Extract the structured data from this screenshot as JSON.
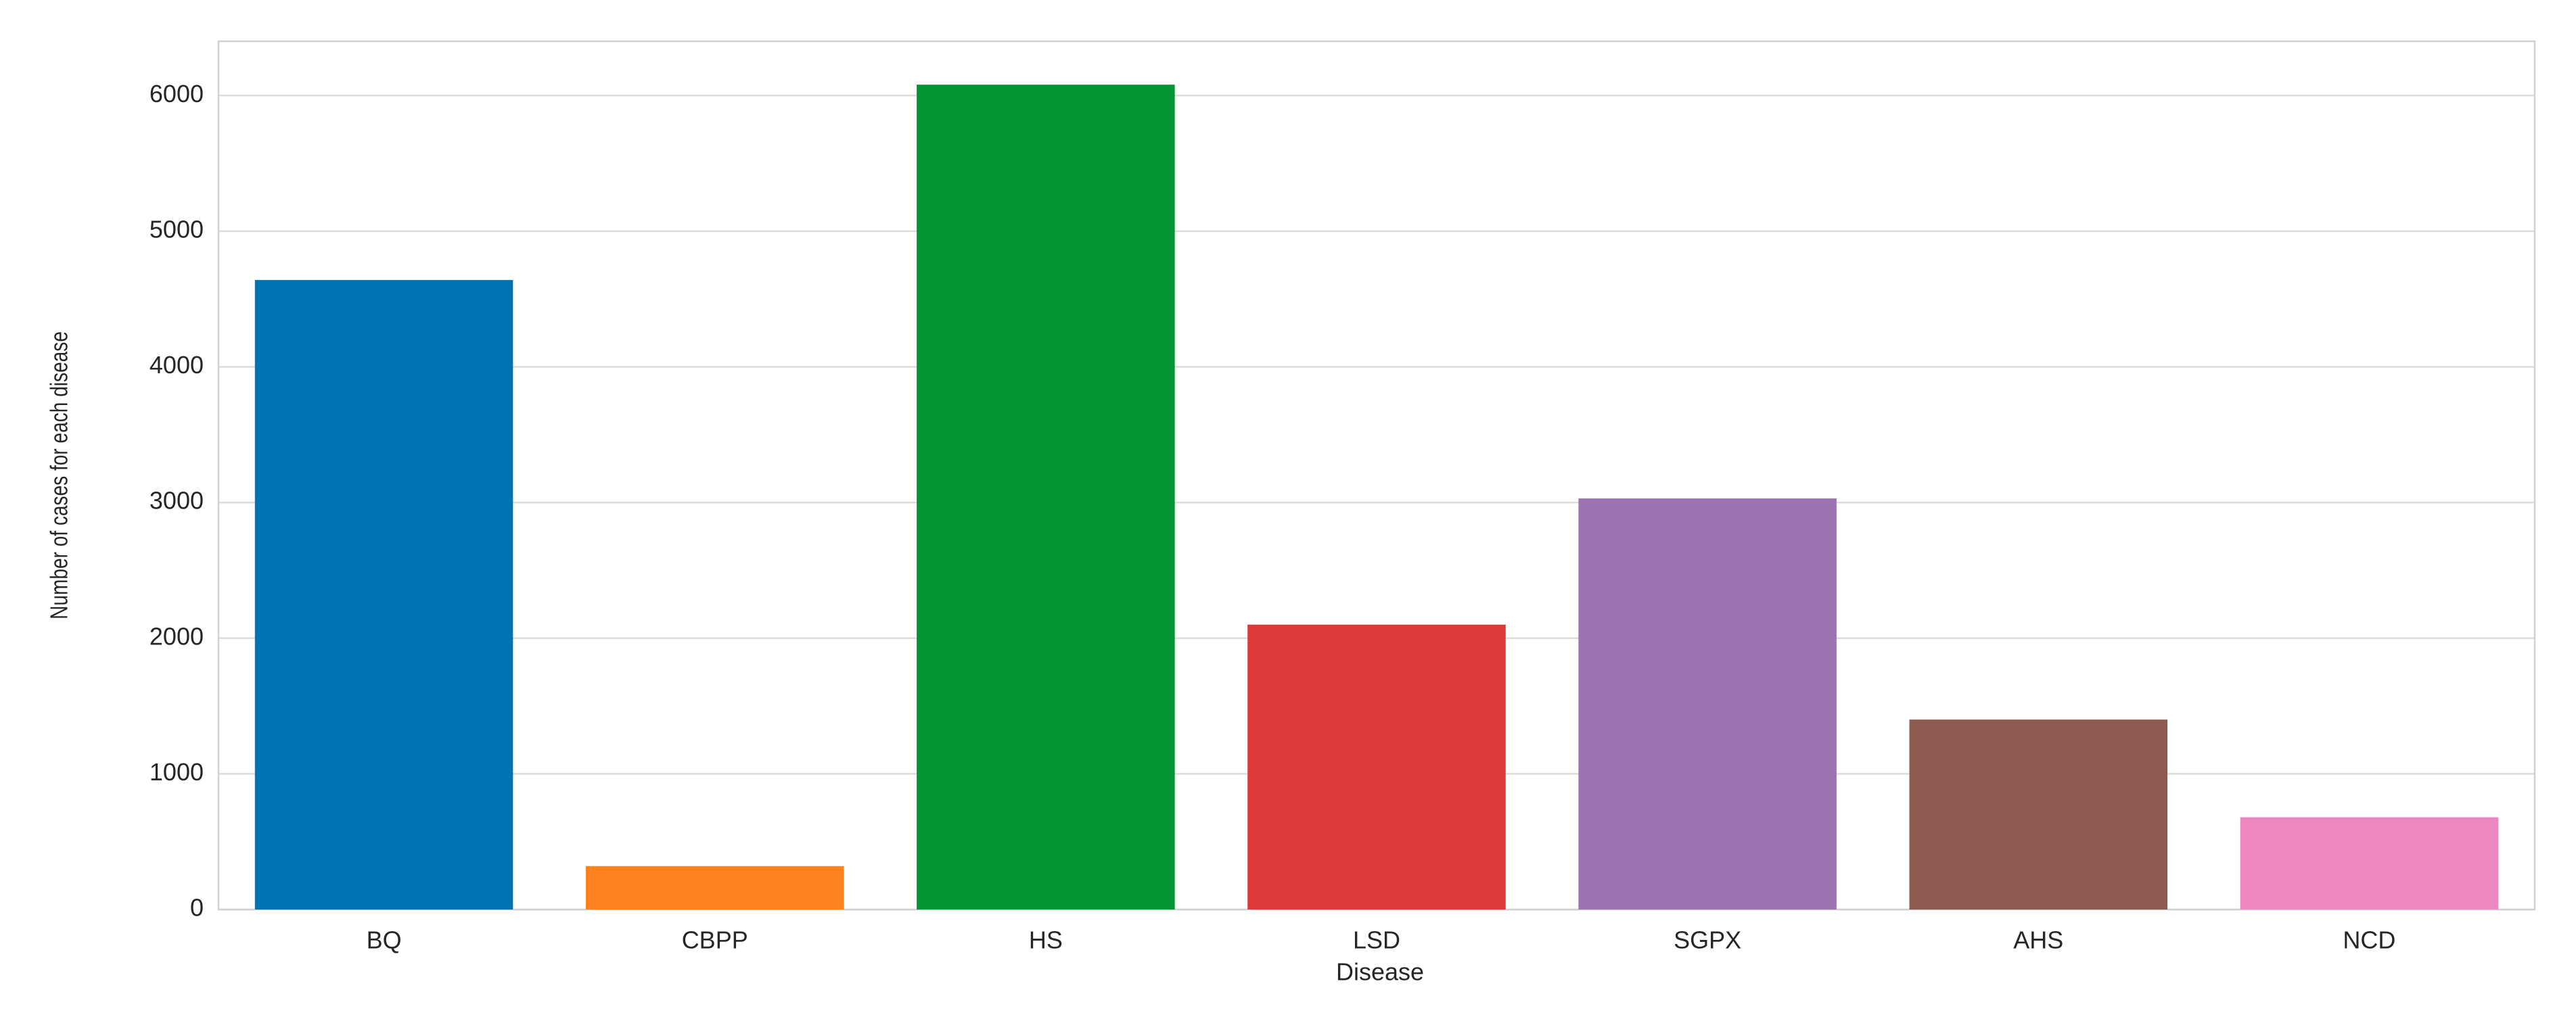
{
  "chart_data": {
    "type": "bar",
    "xlabel": "Disease",
    "ylabel": "Number of cases for each disease",
    "categories": [
      "BQ",
      "CBPP",
      "HS",
      "LSD",
      "SGPX",
      "AHS",
      "NCD"
    ],
    "values": [
      4640,
      320,
      6080,
      2100,
      3030,
      1400,
      680
    ],
    "colors": [
      "#0173b2",
      "#fd8321",
      "#029432",
      "#dc3a3a",
      "#9c74b4",
      "#8e5b50",
      "#ee86c0"
    ],
    "ylim": [
      0,
      6400
    ],
    "yticks": [
      0,
      1000,
      2000,
      3000,
      4000,
      5000,
      6000
    ],
    "grid": true
  }
}
